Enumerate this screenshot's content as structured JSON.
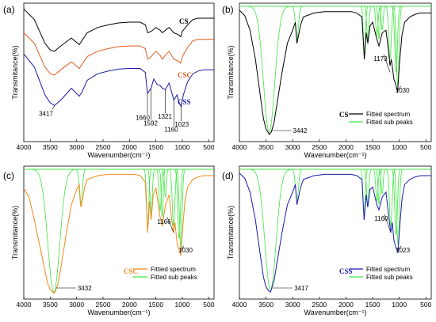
{
  "chart_data": [
    {
      "panel": "(a)",
      "type": "line",
      "xlabel": "Wavenumber(cm⁻¹)",
      "ylabel": "Transmitance(%)",
      "xlim": [
        4000,
        400
      ],
      "xticks": [
        4000,
        3500,
        3000,
        2500,
        2000,
        1500,
        1000,
        500
      ],
      "series": [
        {
          "name": "CS",
          "color": "#000000",
          "x": [
            4000,
            3800,
            3600,
            3500,
            3420,
            3300,
            3100,
            2950,
            2900,
            2800,
            2600,
            2400,
            2200,
            2000,
            1900,
            1800,
            1700,
            1655,
            1590,
            1500,
            1420,
            1380,
            1320,
            1250,
            1160,
            1100,
            1060,
            1030,
            1000,
            900,
            800,
            700,
            600,
            500,
            400
          ],
          "y": [
            0.98,
            0.9,
            0.72,
            0.67,
            0.66,
            0.7,
            0.76,
            0.71,
            0.74,
            0.8,
            0.84,
            0.86,
            0.875,
            0.88,
            0.88,
            0.88,
            0.86,
            0.8,
            0.81,
            0.84,
            0.82,
            0.8,
            0.82,
            0.84,
            0.8,
            0.79,
            0.78,
            0.77,
            0.81,
            0.86,
            0.9,
            0.91,
            0.91,
            0.91,
            0.91
          ]
        },
        {
          "name": "CSC",
          "color": "#e05a1e",
          "x": [
            4000,
            3800,
            3600,
            3500,
            3420,
            3300,
            3100,
            2950,
            2900,
            2800,
            2600,
            2400,
            2200,
            2000,
            1900,
            1800,
            1700,
            1655,
            1590,
            1500,
            1420,
            1380,
            1320,
            1250,
            1160,
            1100,
            1060,
            1030,
            1000,
            900,
            800,
            700,
            600,
            500,
            400
          ],
          "y": [
            0.8,
            0.72,
            0.54,
            0.49,
            0.48,
            0.52,
            0.58,
            0.53,
            0.56,
            0.62,
            0.66,
            0.68,
            0.695,
            0.7,
            0.7,
            0.7,
            0.68,
            0.6,
            0.62,
            0.66,
            0.63,
            0.6,
            0.63,
            0.66,
            0.6,
            0.59,
            0.58,
            0.57,
            0.62,
            0.69,
            0.74,
            0.75,
            0.75,
            0.75,
            0.75
          ]
        },
        {
          "name": "CSS",
          "color": "#1a1aa0",
          "x": [
            4000,
            3800,
            3600,
            3500,
            3420,
            3300,
            3100,
            2950,
            2900,
            2800,
            2600,
            2400,
            2200,
            2000,
            1900,
            1800,
            1700,
            1660,
            1592,
            1540,
            1480,
            1420,
            1380,
            1321,
            1250,
            1160,
            1100,
            1060,
            1023,
            980,
            900,
            800,
            700,
            600,
            500,
            400
          ],
          "y": [
            0.64,
            0.54,
            0.33,
            0.27,
            0.25,
            0.29,
            0.38,
            0.32,
            0.35,
            0.44,
            0.49,
            0.51,
            0.525,
            0.53,
            0.53,
            0.53,
            0.5,
            0.34,
            0.38,
            0.45,
            0.41,
            0.4,
            0.38,
            0.37,
            0.42,
            0.29,
            0.33,
            0.27,
            0.24,
            0.33,
            0.43,
            0.49,
            0.51,
            0.52,
            0.52,
            0.52
          ]
        }
      ],
      "labels": [
        "CS",
        "CSC",
        "CSS"
      ],
      "annotations": [
        {
          "x": 3417,
          "text": "3417"
        },
        {
          "x": 1660,
          "text": "1660"
        },
        {
          "x": 1592,
          "text": "1592"
        },
        {
          "x": 1321,
          "text": "1321"
        },
        {
          "x": 1160,
          "text": "1160"
        },
        {
          "x": 1023,
          "text": "1023"
        }
      ]
    },
    {
      "panel": "(b)",
      "type": "line",
      "xlabel": "Wavenumber(cm⁻¹)",
      "ylabel": "Transmitance(%)",
      "xlim": [
        4000,
        400
      ],
      "xticks": [
        4000,
        3500,
        3000,
        2500,
        2000,
        1500,
        1000,
        500
      ],
      "sample": "CS",
      "main_color": "#000000",
      "legend": [
        "Fitted spectrum",
        "Fitted sub peaks"
      ],
      "series": [
        {
          "name": "Fitted spectrum",
          "color": "#000000",
          "x": [
            4000,
            3900,
            3800,
            3700,
            3600,
            3550,
            3500,
            3450,
            3442,
            3400,
            3350,
            3300,
            3200,
            3100,
            3000,
            2950,
            2920,
            2880,
            2850,
            2800,
            2600,
            2400,
            2200,
            2000,
            1900,
            1800,
            1700,
            1655,
            1620,
            1590,
            1550,
            1500,
            1420,
            1380,
            1320,
            1250,
            1200,
            1173,
            1150,
            1100,
            1060,
            1030,
            1000,
            950,
            900,
            800,
            700,
            600,
            500,
            400
          ],
          "y": [
            0.97,
            0.93,
            0.82,
            0.6,
            0.3,
            0.15,
            0.07,
            0.04,
            0.03,
            0.05,
            0.12,
            0.25,
            0.5,
            0.72,
            0.82,
            0.88,
            0.72,
            0.8,
            0.86,
            0.92,
            0.95,
            0.96,
            0.96,
            0.96,
            0.96,
            0.95,
            0.92,
            0.6,
            0.8,
            0.72,
            0.85,
            0.88,
            0.75,
            0.7,
            0.8,
            0.82,
            0.66,
            0.55,
            0.6,
            0.45,
            0.4,
            0.35,
            0.55,
            0.78,
            0.88,
            0.92,
            0.94,
            0.95,
            0.95,
            0.95
          ]
        }
      ],
      "sub_peaks": [
        {
          "center": 3442,
          "width": 150,
          "depth": 0.95
        },
        {
          "center": 2920,
          "width": 40,
          "depth": 0.25
        },
        {
          "center": 1655,
          "width": 30,
          "depth": 0.35
        },
        {
          "center": 1590,
          "width": 30,
          "depth": 0.25
        },
        {
          "center": 1420,
          "width": 30,
          "depth": 0.22
        },
        {
          "center": 1380,
          "width": 25,
          "depth": 0.25
        },
        {
          "center": 1320,
          "width": 25,
          "depth": 0.18
        },
        {
          "center": 1173,
          "width": 35,
          "depth": 0.4
        },
        {
          "center": 1060,
          "width": 35,
          "depth": 0.5
        },
        {
          "center": 1030,
          "width": 35,
          "depth": 0.6
        }
      ],
      "annotations": [
        {
          "x": 3442,
          "text": "3442"
        },
        {
          "x": 1173,
          "text": "1173"
        },
        {
          "x": 1030,
          "text": "1030"
        }
      ]
    },
    {
      "panel": "(c)",
      "type": "line",
      "xlabel": "Wavenumber(cm⁻¹)",
      "ylabel": "Transmitance(%)",
      "xlim": [
        4000,
        400
      ],
      "xticks": [
        4000,
        3500,
        3000,
        2500,
        2000,
        1500,
        1000,
        500
      ],
      "sample": "CSC",
      "main_color": "#f08a1c",
      "legend": [
        "Fittied spectrum",
        "Fitted sub peaks"
      ],
      "series": [
        {
          "name": "Fittied spectrum",
          "color": "#f08a1c",
          "x": [
            4000,
            3900,
            3800,
            3700,
            3600,
            3550,
            3500,
            3450,
            3432,
            3400,
            3350,
            3300,
            3200,
            3100,
            3000,
            2950,
            2920,
            2880,
            2850,
            2800,
            2600,
            2400,
            2200,
            2000,
            1900,
            1800,
            1700,
            1655,
            1620,
            1590,
            1550,
            1500,
            1420,
            1380,
            1320,
            1250,
            1200,
            1166,
            1140,
            1100,
            1060,
            1030,
            1000,
            950,
            900,
            800,
            700,
            600,
            500,
            400
          ],
          "y": [
            0.85,
            0.78,
            0.6,
            0.4,
            0.2,
            0.1,
            0.05,
            0.03,
            0.02,
            0.04,
            0.1,
            0.22,
            0.48,
            0.72,
            0.84,
            0.88,
            0.7,
            0.78,
            0.86,
            0.92,
            0.95,
            0.96,
            0.96,
            0.96,
            0.96,
            0.95,
            0.9,
            0.5,
            0.75,
            0.6,
            0.8,
            0.85,
            0.62,
            0.55,
            0.72,
            0.8,
            0.6,
            0.5,
            0.58,
            0.42,
            0.36,
            0.32,
            0.5,
            0.75,
            0.86,
            0.92,
            0.94,
            0.95,
            0.95,
            0.95
          ]
        }
      ],
      "sub_peaks": [
        {
          "center": 3432,
          "width": 160,
          "depth": 0.97
        },
        {
          "center": 2920,
          "width": 40,
          "depth": 0.28
        },
        {
          "center": 1655,
          "width": 30,
          "depth": 0.45
        },
        {
          "center": 1590,
          "width": 30,
          "depth": 0.35
        },
        {
          "center": 1420,
          "width": 30,
          "depth": 0.33
        },
        {
          "center": 1380,
          "width": 25,
          "depth": 0.38
        },
        {
          "center": 1320,
          "width": 25,
          "depth": 0.22
        },
        {
          "center": 1166,
          "width": 35,
          "depth": 0.45
        },
        {
          "center": 1060,
          "width": 35,
          "depth": 0.55
        },
        {
          "center": 1030,
          "width": 35,
          "depth": 0.62
        }
      ],
      "annotations": [
        {
          "x": 3432,
          "text": "3432"
        },
        {
          "x": 1166,
          "text": "1166"
        },
        {
          "x": 1030,
          "text": "1030"
        }
      ]
    },
    {
      "panel": "(d)",
      "type": "line",
      "xlabel": "Wavenumber(cm⁻¹)",
      "ylabel": "Transmitance(%)",
      "xlim": [
        4000,
        400
      ],
      "xticks": [
        4000,
        3500,
        3000,
        2500,
        2000,
        1500,
        1000,
        500
      ],
      "sample": "CSS",
      "main_color": "#1a1ab0",
      "legend": [
        "Fitted spectrum",
        "Fitted sub peaks"
      ],
      "series": [
        {
          "name": "Fitted spectrum",
          "color": "#1a1ab0",
          "x": [
            4000,
            3900,
            3800,
            3700,
            3600,
            3550,
            3500,
            3450,
            3417,
            3400,
            3350,
            3300,
            3200,
            3100,
            3000,
            2950,
            2920,
            2880,
            2850,
            2800,
            2600,
            2400,
            2200,
            2000,
            1900,
            1800,
            1700,
            1660,
            1620,
            1592,
            1550,
            1500,
            1420,
            1380,
            1321,
            1250,
            1200,
            1160,
            1130,
            1100,
            1060,
            1023,
            1000,
            950,
            900,
            800,
            700,
            600,
            500,
            400
          ],
          "y": [
            0.97,
            0.93,
            0.82,
            0.6,
            0.3,
            0.15,
            0.07,
            0.04,
            0.03,
            0.05,
            0.12,
            0.25,
            0.5,
            0.72,
            0.82,
            0.88,
            0.72,
            0.8,
            0.86,
            0.92,
            0.95,
            0.96,
            0.96,
            0.96,
            0.96,
            0.95,
            0.92,
            0.6,
            0.8,
            0.7,
            0.84,
            0.86,
            0.72,
            0.68,
            0.78,
            0.82,
            0.64,
            0.5,
            0.58,
            0.44,
            0.38,
            0.34,
            0.5,
            0.76,
            0.88,
            0.92,
            0.94,
            0.95,
            0.95,
            0.95
          ]
        }
      ],
      "sub_peaks": [
        {
          "center": 3417,
          "width": 150,
          "depth": 0.95
        },
        {
          "center": 2920,
          "width": 40,
          "depth": 0.25
        },
        {
          "center": 1660,
          "width": 30,
          "depth": 0.35
        },
        {
          "center": 1592,
          "width": 30,
          "depth": 0.28
        },
        {
          "center": 1420,
          "width": 30,
          "depth": 0.25
        },
        {
          "center": 1380,
          "width": 25,
          "depth": 0.28
        },
        {
          "center": 1321,
          "width": 25,
          "depth": 0.2
        },
        {
          "center": 1160,
          "width": 35,
          "depth": 0.45
        },
        {
          "center": 1060,
          "width": 35,
          "depth": 0.52
        },
        {
          "center": 1023,
          "width": 35,
          "depth": 0.6
        }
      ],
      "annotations": [
        {
          "x": 3417,
          "text": "3417"
        },
        {
          "x": 1160,
          "text": "1160"
        },
        {
          "x": 1023,
          "text": "1023"
        }
      ]
    }
  ]
}
